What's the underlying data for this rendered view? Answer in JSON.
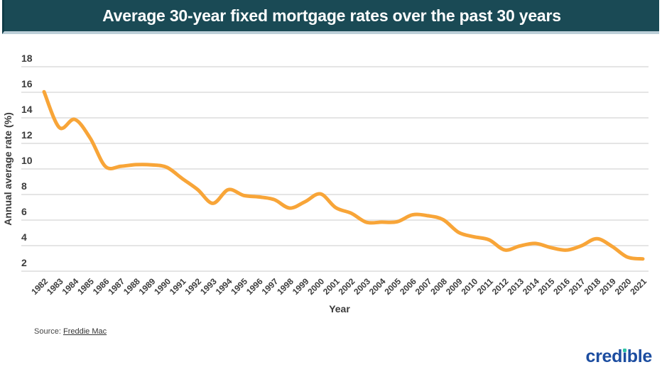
{
  "header": {
    "title": "Average 30-year fixed mortgage rates over the past 30 years",
    "background_color": "#1a4a55"
  },
  "chart_data": {
    "type": "line",
    "title": "Average 30-year fixed mortgage rates over the past 30 years",
    "xlabel": "Year",
    "ylabel": "Annual average rate (%)",
    "x": [
      1982,
      1983,
      1984,
      1985,
      1986,
      1987,
      1988,
      1989,
      1990,
      1991,
      1992,
      1993,
      1994,
      1995,
      1996,
      1997,
      1998,
      1999,
      2000,
      2001,
      2002,
      2003,
      2004,
      2005,
      2006,
      2007,
      2008,
      2009,
      2010,
      2011,
      2012,
      2013,
      2014,
      2015,
      2016,
      2017,
      2018,
      2019,
      2020,
      2021
    ],
    "values": [
      16.04,
      13.24,
      13.88,
      12.43,
      10.19,
      10.21,
      10.34,
      10.32,
      10.13,
      9.25,
      8.39,
      7.31,
      8.38,
      7.93,
      7.81,
      7.6,
      6.94,
      7.44,
      8.05,
      6.97,
      6.54,
      5.83,
      5.84,
      5.87,
      6.41,
      6.34,
      6.03,
      5.04,
      4.69,
      4.45,
      3.66,
      3.98,
      4.17,
      3.85,
      3.65,
      3.99,
      4.54,
      3.94,
      3.1,
      2.96
    ],
    "yticks": [
      2,
      4,
      6,
      8,
      10,
      12,
      14,
      16,
      18
    ],
    "ylim": [
      2,
      18
    ],
    "xlim": [
      1982,
      2021
    ],
    "grid": true,
    "legend": false,
    "smoothed": true,
    "line_color": "#F8A538",
    "grid_color": "#e5e5e5",
    "tick_color": "#3c3c3c"
  },
  "footer": {
    "source_label": "Source:",
    "source_link_text": "Freddie Mac",
    "logo_text": "credible",
    "logo_color": "#1C4DA0",
    "logo_dot_color": "#2EC4A5"
  }
}
